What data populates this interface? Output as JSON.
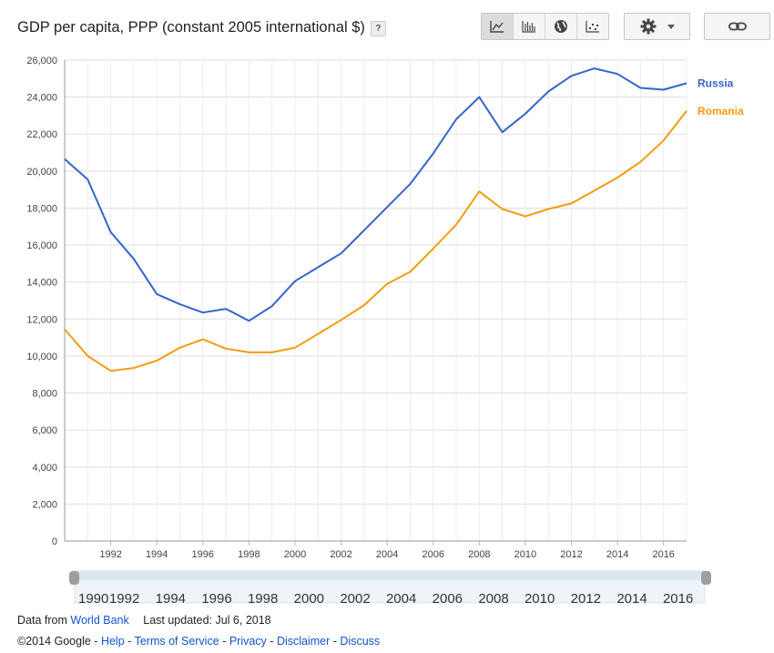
{
  "header": {
    "title": "GDP per capita, PPP (constant 2005 international $)",
    "help_label": "?",
    "view_buttons": [
      {
        "icon": "line-chart-icon",
        "active": true
      },
      {
        "icon": "bar-chart-icon",
        "active": false
      },
      {
        "icon": "globe-icon",
        "active": false
      },
      {
        "icon": "scatter-plot-icon",
        "active": false
      }
    ],
    "settings_icon": "gear-icon",
    "link_icon": "link-icon"
  },
  "colors": {
    "russia": "#3366cc",
    "romania": "#f39c12",
    "grid": "#dddddd"
  },
  "chart_data": {
    "type": "line",
    "title": "GDP per capita, PPP (constant 2005 international $)",
    "x": [
      1990,
      1991,
      1992,
      1993,
      1994,
      1995,
      1996,
      1997,
      1998,
      1999,
      2000,
      2001,
      2002,
      2003,
      2004,
      2005,
      2006,
      2007,
      2008,
      2009,
      2010,
      2011,
      2012,
      2013,
      2014,
      2015,
      2016,
      2017
    ],
    "series": [
      {
        "name": "Russia",
        "values": [
          20650,
          19550,
          16700,
          15250,
          13350,
          12800,
          12350,
          12550,
          11900,
          12700,
          14050,
          14800,
          15550,
          16800,
          18050,
          19300,
          20950,
          22800,
          24000,
          22100,
          23100,
          24300,
          25150,
          25550,
          25250,
          24500,
          24400,
          24750
        ]
      },
      {
        "name": "Romania",
        "values": [
          11450,
          10000,
          9200,
          9350,
          9750,
          10450,
          10900,
          10400,
          10200,
          10200,
          10450,
          11200,
          11950,
          12750,
          13900,
          14550,
          15800,
          17100,
          18900,
          17950,
          17550,
          17950,
          18250,
          18950,
          19650,
          20500,
          21650,
          23250
        ]
      }
    ],
    "ylim": [
      0,
      26000
    ],
    "yticks": [
      "0",
      "2,000",
      "4,000",
      "6,000",
      "8,000",
      "10,000",
      "12,000",
      "14,000",
      "16,000",
      "18,000",
      "20,000",
      "22,000",
      "24,000",
      "26,000"
    ],
    "xticks": [
      "1992",
      "1994",
      "1996",
      "1998",
      "2000",
      "2002",
      "2004",
      "2006",
      "2008",
      "2010",
      "2012",
      "2014",
      "2016"
    ],
    "grid": true,
    "legend": "right, inline at line ends"
  },
  "range_slider": {
    "labels": [
      "1990",
      "1992",
      "1994",
      "1996",
      "1998",
      "2000",
      "2002",
      "2004",
      "2006",
      "2008",
      "2010",
      "2012",
      "2014",
      "2016"
    ]
  },
  "footer": {
    "data_from_label": "Data from",
    "source_link": "World Bank",
    "last_updated": "Last updated: Jul 6, 2018",
    "copyright": "©2014 Google",
    "links": [
      "Help",
      "Terms of Service",
      "Privacy",
      "Disclaimer",
      "Discuss"
    ]
  }
}
